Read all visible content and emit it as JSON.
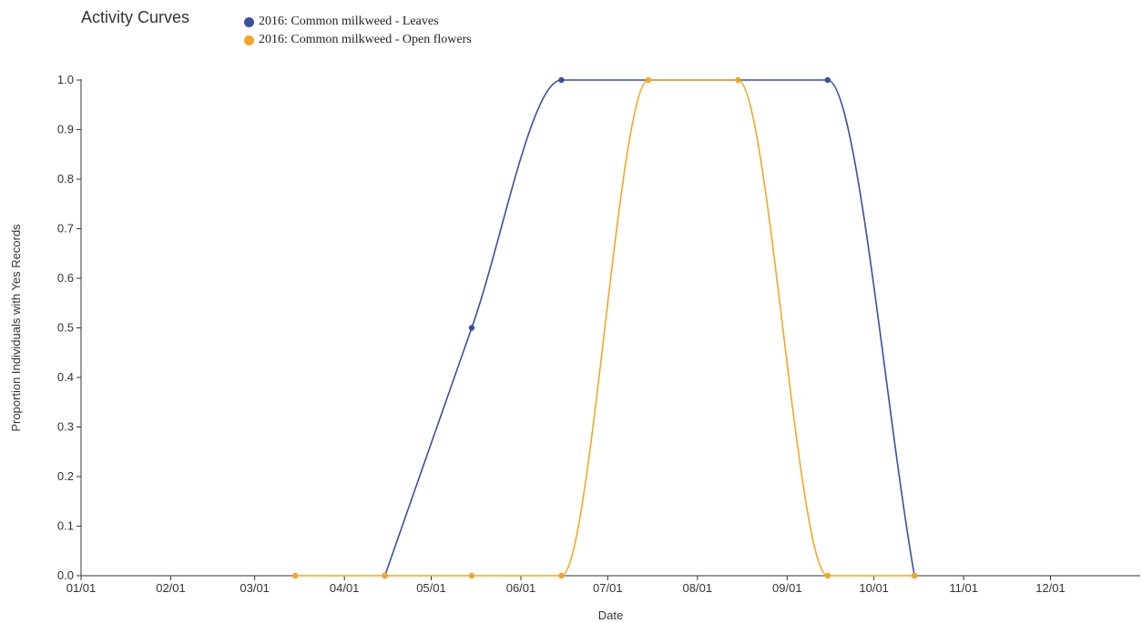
{
  "chart_data": {
    "type": "line",
    "title": "Activity Curves",
    "xlabel": "Date",
    "ylabel": "Proportion Individuals with Yes Records",
    "ylim": [
      0,
      1
    ],
    "xlim": [
      "01/01",
      "12/31"
    ],
    "x_ticks": [
      "01/01",
      "02/01",
      "03/01",
      "04/01",
      "05/01",
      "06/01",
      "07/01",
      "08/01",
      "09/01",
      "10/01",
      "11/01",
      "12/01"
    ],
    "y_ticks": [
      "0.0",
      "0.1",
      "0.2",
      "0.3",
      "0.4",
      "0.5",
      "0.6",
      "0.7",
      "0.8",
      "0.9",
      "1.0"
    ],
    "grid": false,
    "legend_position": "top",
    "series": [
      {
        "name": "2016: Common milkweed - Leaves",
        "color": "#3a4f9e",
        "points": [
          {
            "x": "04/15",
            "y": 0.0
          },
          {
            "x": "05/15",
            "y": 0.5
          },
          {
            "x": "06/15",
            "y": 1.0
          },
          {
            "x": "09/15",
            "y": 1.0
          },
          {
            "x": "10/15",
            "y": 0.0
          }
        ]
      },
      {
        "name": "2016: Common milkweed - Open flowers",
        "color": "#f5a623",
        "points": [
          {
            "x": "03/15",
            "y": 0.0
          },
          {
            "x": "04/15",
            "y": 0.0
          },
          {
            "x": "05/15",
            "y": 0.0
          },
          {
            "x": "06/15",
            "y": 0.0
          },
          {
            "x": "07/15",
            "y": 1.0
          },
          {
            "x": "08/15",
            "y": 1.0
          },
          {
            "x": "09/15",
            "y": 0.0
          },
          {
            "x": "10/15",
            "y": 0.0
          }
        ]
      }
    ]
  }
}
